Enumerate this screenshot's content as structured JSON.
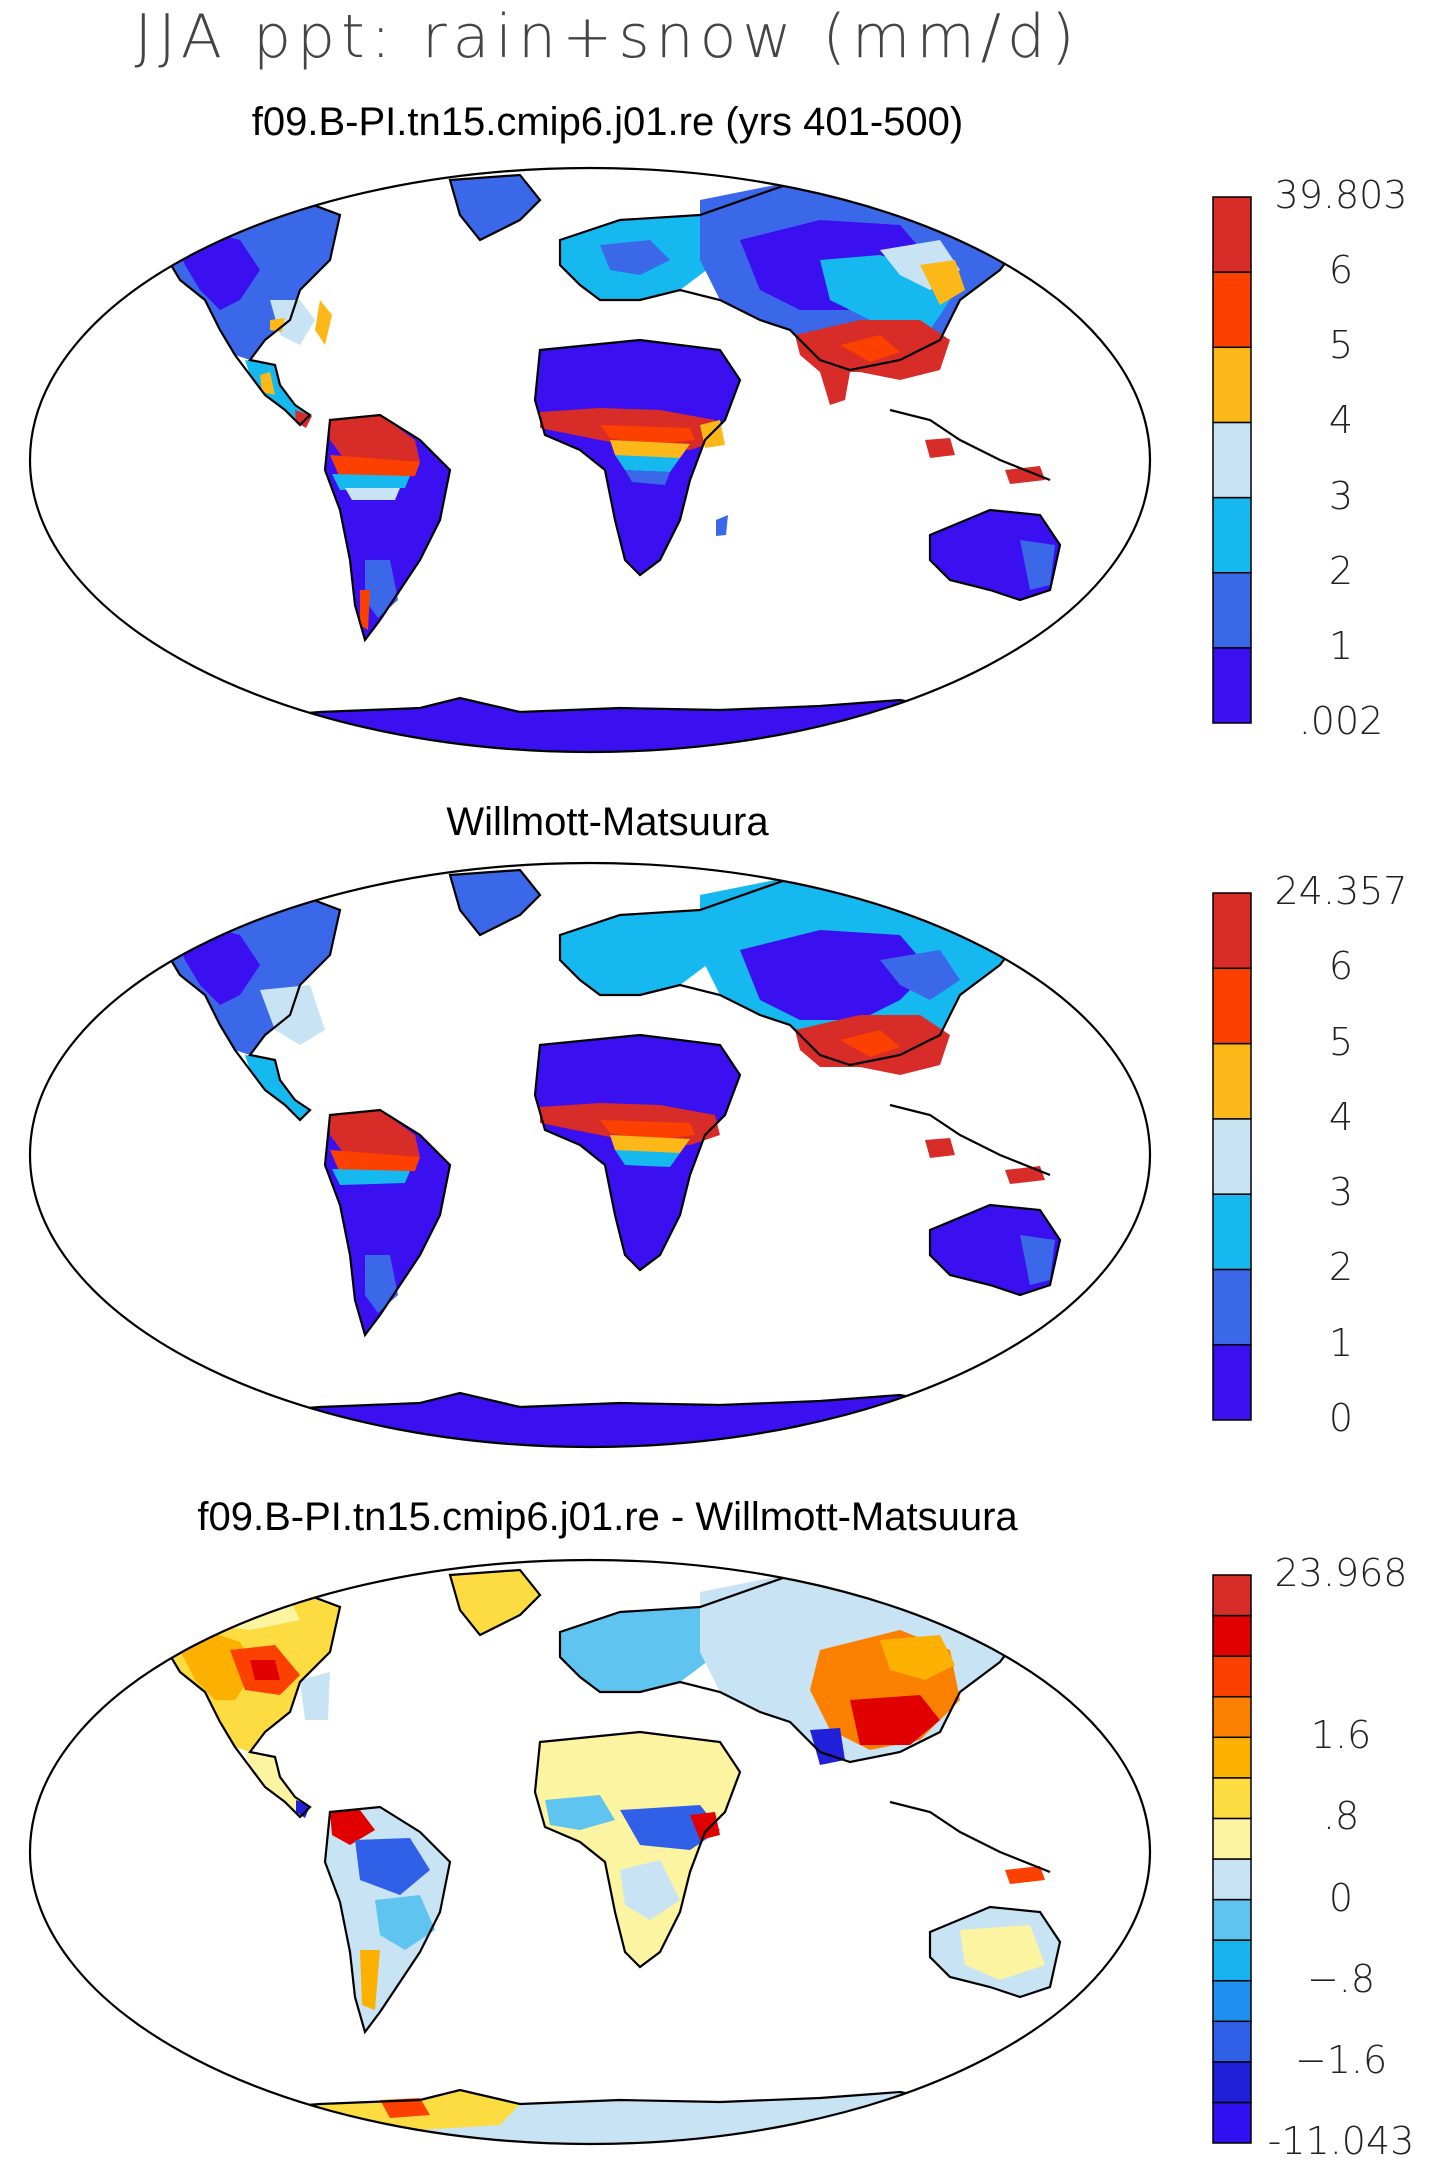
{
  "figure_title": "JJA ppt: rain+snow (mm/d)",
  "panels": [
    {
      "title": "f09.B-PI.tn15.cmip6.j01.re (yrs 401-500)",
      "colorbar": {
        "colors": [
          "#3a10f0",
          "#3a68e8",
          "#16b8f0",
          "#c8e4f4",
          "#fcb818",
          "#fc4000",
          "#d82c28"
        ],
        "labels": [
          ".002",
          "1",
          "2",
          "3",
          "4",
          "5",
          "6",
          "39.803"
        ]
      }
    },
    {
      "title": "Willmott-Matsuura",
      "colorbar": {
        "colors": [
          "#3a10f0",
          "#3a68e8",
          "#16b8f0",
          "#c8e4f4",
          "#fcb818",
          "#fc4000",
          "#d82c28"
        ],
        "labels": [
          "0",
          "1",
          "2",
          "3",
          "4",
          "5",
          "6",
          "24.357"
        ]
      }
    },
    {
      "title": "f09.B-PI.tn15.cmip6.j01.re - Willmott-Matsuura",
      "colorbar": {
        "colors": [
          "#3010f0",
          "#2020d8",
          "#3060e8",
          "#2090f0",
          "#18b4f0",
          "#60c4f0",
          "#c8e4f4",
          "#fcf4a0",
          "#fcdc40",
          "#fcb000",
          "#fc8000",
          "#fc4000",
          "#e00000",
          "#d82c28"
        ],
        "labels": [
          "-11.043",
          "",
          "−1.6",
          "",
          "−.8",
          "",
          "0",
          "",
          ".8",
          "",
          "1.6",
          "",
          "",
          "23.968"
        ]
      }
    }
  ]
}
